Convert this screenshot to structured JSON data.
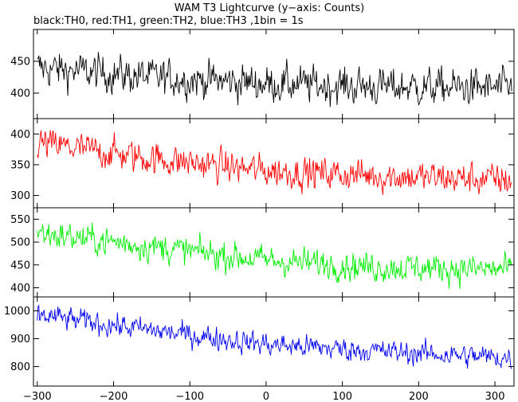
{
  "chart_data": {
    "type": "line",
    "title": "WAM T3 Lightcurve (y−axis: Counts)",
    "subtitle": "black:TH0, red:TH1, green:TH2, blue:TH3 ,1bin = 1s",
    "xlim": [
      -305,
      325
    ],
    "xticks": [
      -300,
      -200,
      -100,
      0,
      100,
      200,
      300
    ],
    "x_step": 1,
    "x_start": -300,
    "x_end": 322,
    "grid": false,
    "panels": [
      {
        "name": "TH0",
        "color": "#000000",
        "ylim": [
          360,
          500
        ],
        "yticks": [
          400,
          450
        ],
        "trend": [
          [
            -300,
            440
          ],
          [
            -150,
            425
          ],
          [
            0,
            415
          ],
          [
            150,
            410
          ],
          [
            322,
            408
          ]
        ],
        "noise": 22
      },
      {
        "name": "TH1",
        "color": "#ff0000",
        "ylim": [
          280,
          425
        ],
        "yticks": [
          300,
          350,
          400
        ],
        "trend": [
          [
            -300,
            385
          ],
          [
            -150,
            360
          ],
          [
            0,
            340
          ],
          [
            150,
            332
          ],
          [
            322,
            325
          ]
        ],
        "noise": 20
      },
      {
        "name": "TH2",
        "color": "#00ee00",
        "ylim": [
          380,
          575
        ],
        "yticks": [
          400,
          450,
          500,
          550
        ],
        "trend": [
          [
            -300,
            520
          ],
          [
            -150,
            490
          ],
          [
            0,
            460
          ],
          [
            150,
            445
          ],
          [
            322,
            440
          ]
        ],
        "noise": 24
      },
      {
        "name": "TH3",
        "color": "#0000ee",
        "ylim": [
          730,
          1050
        ],
        "yticks": [
          800,
          900,
          1000
        ],
        "trend": [
          [
            -300,
            985
          ],
          [
            -150,
            930
          ],
          [
            0,
            880
          ],
          [
            150,
            855
          ],
          [
            322,
            830
          ]
        ],
        "noise": 32
      }
    ]
  }
}
